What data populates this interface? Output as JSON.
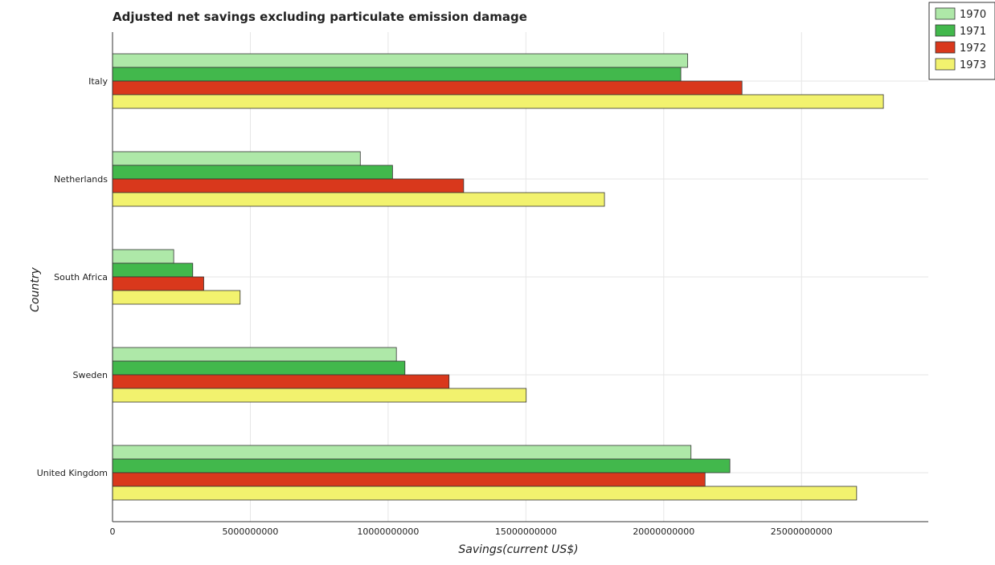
{
  "chart_data": {
    "type": "bar",
    "orientation": "horizontal",
    "title": "Adjusted net savings excluding particulate emission damage",
    "xlabel": "Savings(current US$)",
    "ylabel": "Country",
    "categories": [
      "Italy",
      "Netherlands",
      "South Africa",
      "Sweden",
      "United Kingdom"
    ],
    "series": [
      {
        "name": "1970",
        "color": "#aee8a8",
        "values": [
          20870000000,
          8990000000,
          2220000000,
          10300000000,
          20990000000
        ]
      },
      {
        "name": "1971",
        "color": "#42b84c",
        "values": [
          20620000000,
          10160000000,
          2910000000,
          10610000000,
          22400000000
        ]
      },
      {
        "name": "1972",
        "color": "#d9381c",
        "values": [
          22840000000,
          12740000000,
          3310000000,
          12210000000,
          21500000000
        ]
      },
      {
        "name": "1973",
        "color": "#f2f26e",
        "values": [
          27970000000,
          17850000000,
          4630000000,
          15010000000,
          27000000000
        ]
      }
    ],
    "xlim": [
      0,
      29600000000
    ],
    "xticks": [
      0,
      5000000000,
      10000000000,
      15000000000,
      20000000000,
      25000000000
    ],
    "xtick_labels": [
      "0",
      "5000000000",
      "10000000000",
      "15000000000",
      "20000000000",
      "25000000000"
    ],
    "grid": true,
    "legend_position": "top-right"
  }
}
